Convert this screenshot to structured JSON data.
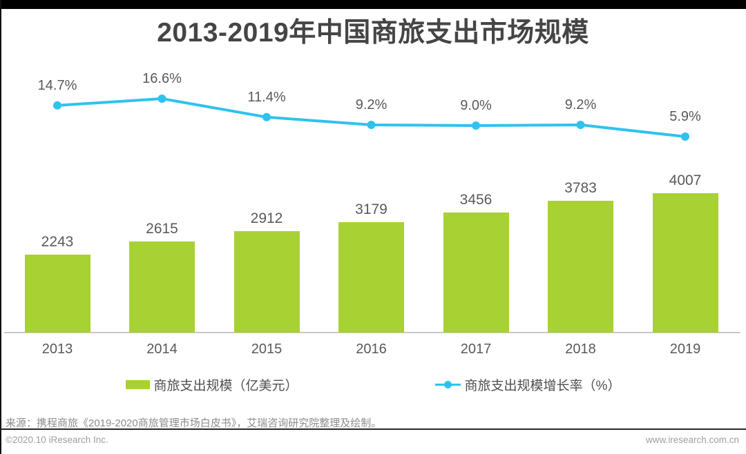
{
  "page": {
    "source_note": "来源：携程商旅《2019-2020商旅管理市场白皮书》，艾瑞咨询研究院整理及绘制。",
    "footer_left": "©2020.10 iResearch Inc.",
    "footer_right": "www.iresearch.com.cn"
  },
  "legend": {
    "bar_label": "商旅支出规模（亿美元）",
    "line_label": "商旅支出规模增长率（%）"
  },
  "colors": {
    "bar_green": "#A8D133",
    "line_blue": "#2FC2EF",
    "title_text": "#454545",
    "label_text": "#595959",
    "axis_line": "#C8C8C8",
    "source_text": "#8C8C8C",
    "footer_text": "#9E9E9E",
    "separator": "#262626",
    "top_strip": "#000000"
  },
  "chart_data": {
    "type": "bar+line",
    "title": "2013-2019年中国商旅支出市场规模",
    "categories": [
      "2013",
      "2014",
      "2015",
      "2016",
      "2017",
      "2018",
      "2019"
    ],
    "series": [
      {
        "name": "商旅支出规模（亿美元）",
        "type": "bar",
        "color": "#A8D133",
        "unit": "亿美元",
        "values": [
          2243,
          2615,
          2912,
          3179,
          3456,
          3783,
          4007
        ]
      },
      {
        "name": "商旅支出规模增长率（%）",
        "type": "line",
        "color": "#2FC2EF",
        "unit": "%",
        "values": [
          14.7,
          16.6,
          11.4,
          9.2,
          9.0,
          9.2,
          5.9
        ],
        "labels": [
          "14.7%",
          "16.6%",
          "11.4%",
          "9.2%",
          "9.0%",
          "9.2%",
          "5.9%"
        ]
      }
    ],
    "legend_position": "bottom-center",
    "grid": false,
    "data_labels": true,
    "y_axis_visible": false
  }
}
